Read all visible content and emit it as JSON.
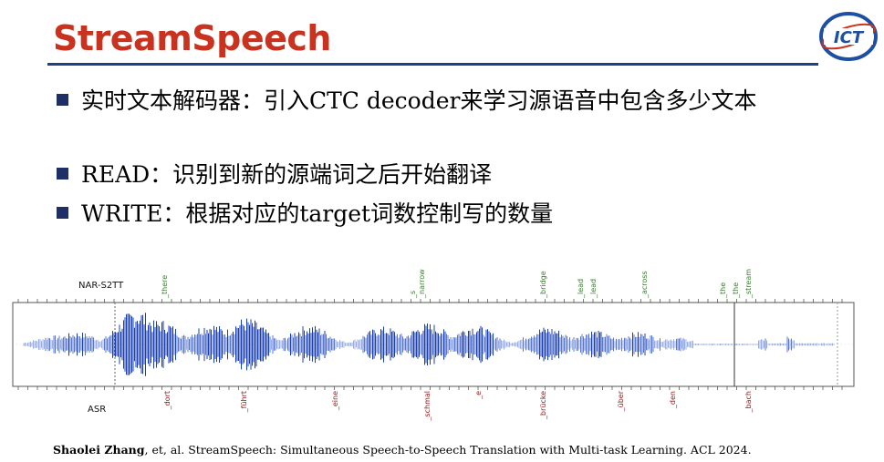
{
  "title": "StreamSpeech",
  "logo": {
    "text": "ICT",
    "icon": "ict-logo-icon"
  },
  "bullets": [
    "实时文本解码器：引入CTC decoder来学习源语音中包含多少文本",
    "READ：识别到新的源端词之后开始翻译",
    "WRITE：根据对应的target词数控制写的数量"
  ],
  "figure": {
    "top_label": "NAR-S2TT",
    "bottom_label": "ASR",
    "top_words": [
      "_there",
      "_s",
      "_narrow",
      "_bridge",
      "_lead",
      "_lead",
      "_across",
      "_the",
      "_the",
      "_stream"
    ],
    "bottom_words": [
      "_dort",
      "_führt",
      "_eine",
      "_schmal",
      "_e",
      "_brücke",
      "_über",
      "_den",
      "_bach"
    ],
    "colors": {
      "waveform": "#1a3fb0",
      "top_words": "#3a7a30",
      "bottom_words": "#8b1a1a"
    }
  },
  "citation": {
    "authors": "Shaolei Zhang",
    "rest": ", et, al.  StreamSpeech: Simultaneous Speech-to-Speech Translation with Multi-task Learning. ACL 2024."
  }
}
